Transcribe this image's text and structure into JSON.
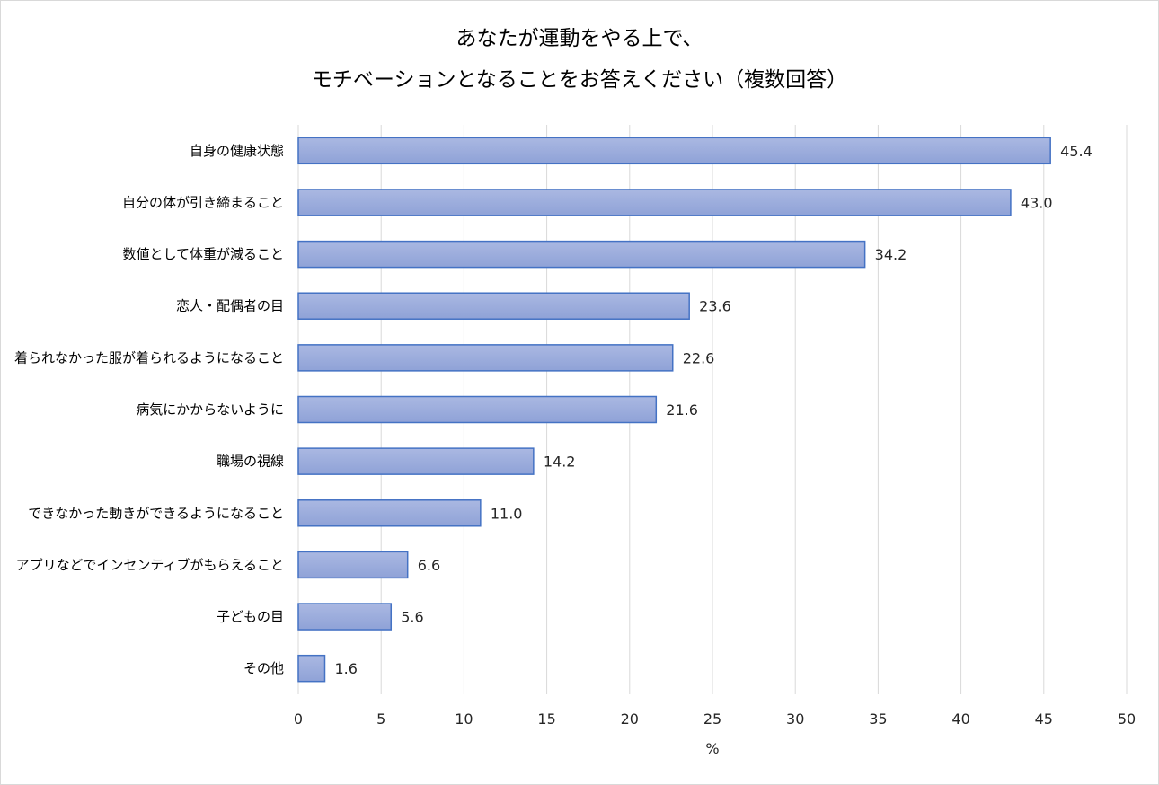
{
  "chart_data": {
    "type": "bar",
    "orientation": "horizontal",
    "title": [
      "あなたが運動をやる上で、",
      "モチベーションとなることをお答えください（複数回答）"
    ],
    "categories": [
      "自身の健康状態",
      "自分の体が引き締まること",
      "数値として体重が減ること",
      "恋人・配偶者の目",
      "着られなかった服が着られるようになること",
      "病気にかからないように",
      "職場の視線",
      "できなかった動きができるようになること",
      "アプリなどでインセンティブがもらえること",
      "子どもの目",
      "その他"
    ],
    "values": [
      45.4,
      43.0,
      34.2,
      23.6,
      22.6,
      21.6,
      14.2,
      11.0,
      6.6,
      5.6,
      1.6
    ],
    "value_labels": [
      "45.4",
      "43.0",
      "34.2",
      "23.6",
      "22.6",
      "21.6",
      "14.2",
      "11.0",
      "6.6",
      "5.6",
      "1.6"
    ],
    "xlabel": "%",
    "ylabel": "",
    "xlim": [
      0,
      50
    ],
    "xticks": [
      0,
      5,
      10,
      15,
      20,
      25,
      30,
      35,
      40,
      45,
      50
    ],
    "grid": true,
    "legend": "none",
    "colors": {
      "bar_fill_top": "#aab8e2",
      "bar_fill_bottom": "#8fa2d7",
      "bar_stroke": "#4472c4",
      "grid": "#d9d9d9"
    }
  }
}
